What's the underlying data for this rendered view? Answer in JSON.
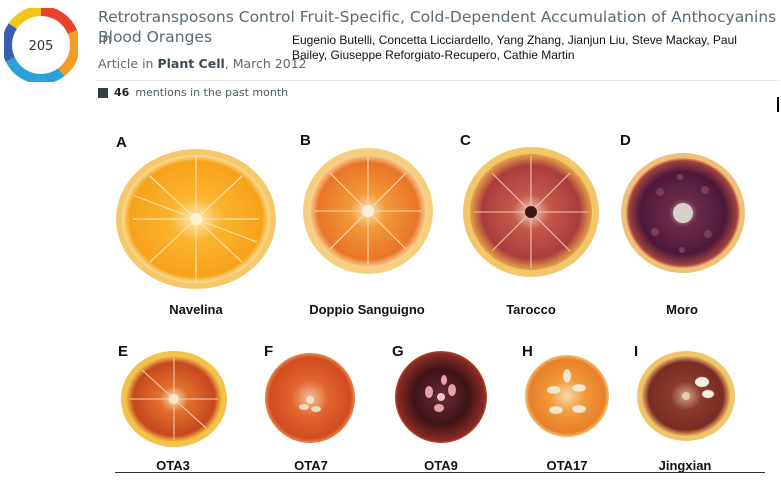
{
  "altmetric": {
    "score": "205"
  },
  "article": {
    "title_line1": "Retrotransposons Control Fruit-Specific, Cold-Dependent Accumulation of Anthocyanins in",
    "title_line2": "Blood Oranges",
    "meta_prefix": "Article in",
    "journal": "Plant Cell",
    "date": ", March 2012",
    "authors_line1": "Eugenio Butelli, Concetta Licciardello, Yang Zhang, Jianjun Liu, Steve Mackay, Paul",
    "authors_line2": "Bailey, Giuseppe Reforgiato-Recupero, Cathie Martin"
  },
  "mentions": {
    "count": "46",
    "text": "mentions in the past month"
  },
  "figure": {
    "panels": [
      {
        "letter": "A",
        "label": "Navelina"
      },
      {
        "letter": "B",
        "label": "Doppio Sanguigno"
      },
      {
        "letter": "C",
        "label": "Tarocco"
      },
      {
        "letter": "D",
        "label": "Moro"
      },
      {
        "letter": "E",
        "label": "OTA3"
      },
      {
        "letter": "F",
        "label": "OTA7"
      },
      {
        "letter": "G",
        "label": "OTA9"
      },
      {
        "letter": "H",
        "label": "OTA17"
      },
      {
        "letter": "I",
        "label": "Jingxian"
      }
    ]
  }
}
